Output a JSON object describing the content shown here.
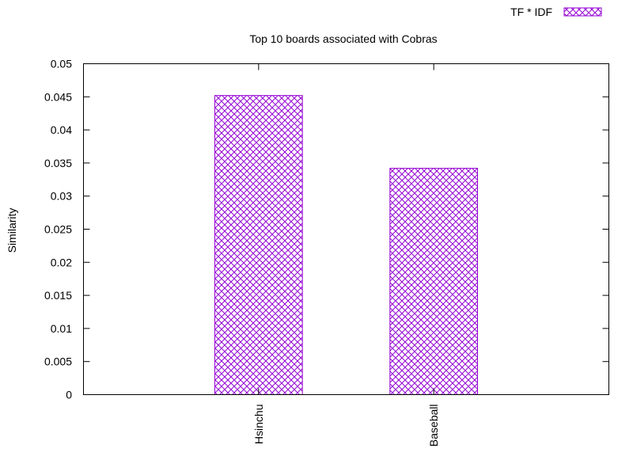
{
  "chart_data": {
    "type": "bar",
    "title": "Top 10 boards associated with Cobras",
    "xlabel": "",
    "ylabel": "Similarity",
    "categories": [
      "Hsinchu",
      "Baseball"
    ],
    "series": [
      {
        "name": "TF * IDF",
        "values": [
          0.0452,
          0.0342
        ]
      }
    ],
    "ylim": [
      0,
      0.05
    ],
    "yticks": [
      0,
      0.005,
      0.01,
      0.015,
      0.02,
      0.025,
      0.03,
      0.035,
      0.04,
      0.045,
      0.05
    ],
    "ytick_labels": [
      "0",
      "0.005",
      "0.01",
      "0.015",
      "0.02",
      "0.025",
      "0.03",
      "0.035",
      "0.04",
      "0.045",
      "0.05"
    ],
    "grid": false,
    "legend_position": "top-right",
    "bar_color": "#9400d3",
    "bar_pattern": "crosshatch"
  }
}
